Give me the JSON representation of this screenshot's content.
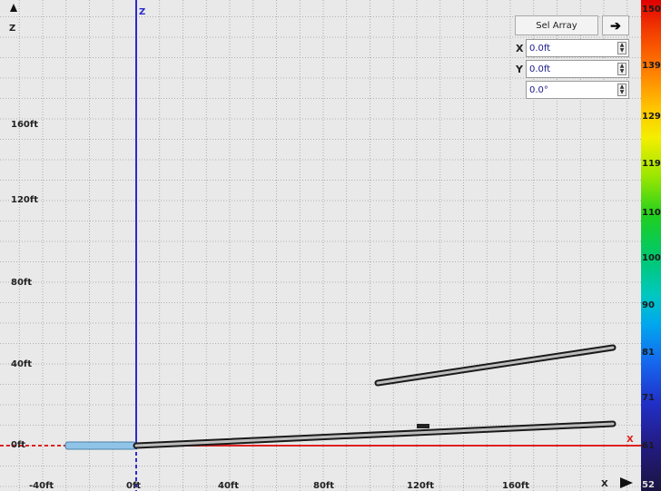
{
  "axes": {
    "z_axis_letter": "Z",
    "z_axis_top_letter": "Z",
    "x_axis_letter": "X",
    "x_axis_right_letter": "X",
    "y_tick_labels": [
      "160ft",
      "120ft",
      "80ft",
      "40ft",
      "0ft"
    ],
    "x_tick_labels": [
      "-40ft",
      "0ft",
      "40ft",
      "80ft",
      "120ft",
      "160ft"
    ]
  },
  "panel": {
    "sel_array_label": "Sel Array",
    "apply_icon": "arrow-right-icon",
    "fields": [
      {
        "label": "X",
        "value": "0.0ft"
      },
      {
        "label": "Y",
        "value": "0.0ft"
      },
      {
        "label": "",
        "value": "0.0°"
      }
    ]
  },
  "colorbar": {
    "labels": [
      "150",
      "139",
      "129",
      "119",
      "110",
      "100",
      "90",
      "81",
      "71",
      "61",
      "52"
    ]
  },
  "colors": {
    "z_axis": "#2a2ad0",
    "x_axis": "#e02020",
    "selected_element": "#8fc4e8",
    "element": "#1a1a1a"
  }
}
